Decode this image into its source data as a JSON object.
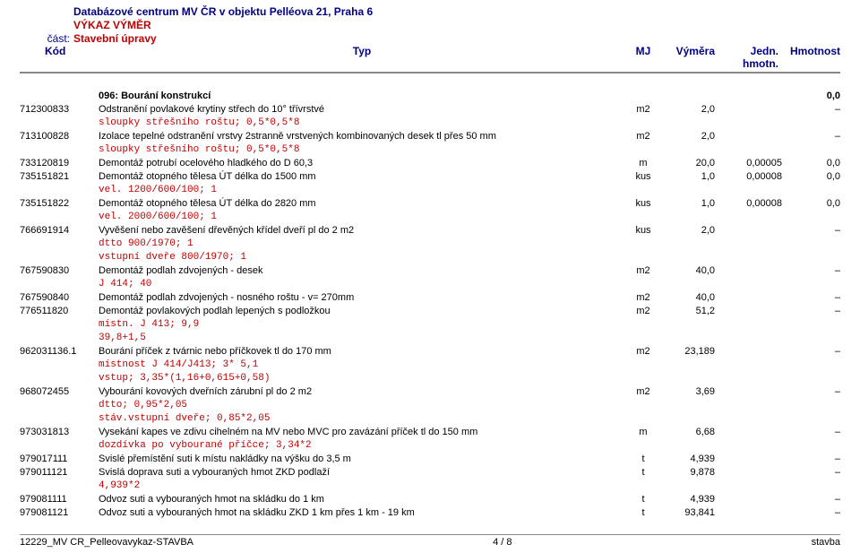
{
  "header": {
    "line1": "Databázové centrum MV ČR v objektu Pelléova 21, Praha 6",
    "line2": "VÝKAZ VÝMĚR",
    "line3_label": "část:",
    "line3_value": "Stavební úpravy"
  },
  "columns": {
    "kod": "Kód",
    "typ": "Typ",
    "mj": "MJ",
    "vymera": "Výměra",
    "jedn": "Jedn. hmotn.",
    "hmot": "Hmotnost"
  },
  "section": {
    "label": "096: Bourání konstrukcí",
    "total": "0,0"
  },
  "rows": [
    {
      "t": "item",
      "kod": "712300833",
      "typ": "Odstranění povlakové krytiny střech do 10° třívrstvé",
      "mj": "m2",
      "vym": "2,0",
      "jedn": "",
      "hm": "–"
    },
    {
      "t": "anno",
      "txt": "sloupky střešního roštu;  0,5*0,5*8"
    },
    {
      "t": "item",
      "kod": "713100828",
      "typ": "Izolace tepelné odstranění vrstvy 2stranně vrstvených kombinovaných desek tl přes 50 mm",
      "mj": "m2",
      "vym": "2,0",
      "jedn": "",
      "hm": "–"
    },
    {
      "t": "anno",
      "txt": "sloupky střešního roštu;  0,5*0,5*8"
    },
    {
      "t": "item",
      "kod": "733120819",
      "typ": "Demontáž potrubí ocelového hladkého do D 60,3",
      "mj": "m",
      "vym": "20,0",
      "jedn": "0,00005",
      "hm": "0,0"
    },
    {
      "t": "item",
      "kod": "735151821",
      "typ": "Demontáž otopného tělesa  ÚT délka do 1500 mm",
      "mj": "kus",
      "vym": "1,0",
      "jedn": "0,00008",
      "hm": "0,0"
    },
    {
      "t": "anno",
      "txt": "vel. 1200/600/100;  1"
    },
    {
      "t": "item",
      "kod": "735151822",
      "typ": "Demontáž otopného tělesa  ÚT délka do 2820 mm",
      "mj": "kus",
      "vym": "1,0",
      "jedn": "0,00008",
      "hm": "0,0"
    },
    {
      "t": "anno",
      "txt": "vel. 2000/600/100;  1"
    },
    {
      "t": "item",
      "kod": "766691914",
      "typ": "Vyvěšení nebo zavěšení dřevěných křídel dveří pl do 2 m2",
      "mj": "kus",
      "vym": "2,0",
      "jedn": "",
      "hm": "–"
    },
    {
      "t": "anno",
      "txt": "dtto 900/1970;  1"
    },
    {
      "t": "anno",
      "txt": "vstupní dveře 800/1970;  1"
    },
    {
      "t": "item",
      "kod": "767590830",
      "typ": "Demontáž podlah zdvojených - desek",
      "mj": "m2",
      "vym": "40,0",
      "jedn": "",
      "hm": "–"
    },
    {
      "t": "anno",
      "txt": "J 414;  40"
    },
    {
      "t": "item",
      "kod": "767590840",
      "typ": "Demontáž podlah zdvojených - nosného roštu - v= 270mm",
      "mj": "m2",
      "vym": "40,0",
      "jedn": "",
      "hm": "–"
    },
    {
      "t": "item",
      "kod": "776511820",
      "typ": "Demontáž povlakových podlah lepených s podložkou",
      "mj": "m2",
      "vym": "51,2",
      "jedn": "",
      "hm": "–"
    },
    {
      "t": "anno",
      "txt": "místn. J 413;  9,9"
    },
    {
      "t": "anno",
      "txt": "39,8+1,5"
    },
    {
      "t": "item",
      "kod": "962031136.1",
      "typ": "Bourání příček z tvárnic nebo příčkovek tl do 170 mm",
      "mj": "m2",
      "vym": "23,189",
      "jedn": "",
      "hm": "–"
    },
    {
      "t": "anno",
      "txt": "místnost J 414/J413;  3* 5,1"
    },
    {
      "t": "anno",
      "txt": "vstup;  3,35*(1,16+0,615+0,58)"
    },
    {
      "t": "item",
      "kod": "968072455",
      "typ": "Vybourání kovových dveřních zárubní pl do 2 m2",
      "mj": "m2",
      "vym": "3,69",
      "jedn": "",
      "hm": "–"
    },
    {
      "t": "anno",
      "txt": "dtto;  0,95*2,05"
    },
    {
      "t": "anno",
      "txt": "stáv.vstupní dveře;  0,85*2,05"
    },
    {
      "t": "item",
      "kod": "973031813",
      "typ": "Vysekání kapes ve zdivu cihelném na MV nebo MVC pro zavázání příček tl do 150 mm",
      "mj": "m",
      "vym": "6,68",
      "jedn": "",
      "hm": "–"
    },
    {
      "t": "anno",
      "txt": "dozdívka po vybourané příčce;  3,34*2"
    },
    {
      "t": "item",
      "kod": "979017111",
      "typ": "Svislé přemístění suti k místu nakládky na výšku do 3,5 m",
      "mj": "t",
      "vym": "4,939",
      "jedn": "",
      "hm": "–"
    },
    {
      "t": "item",
      "kod": "979011121",
      "typ": "Svislá doprava suti a vybouraných hmot ZKD podlaží",
      "mj": "t",
      "vym": "9,878",
      "jedn": "",
      "hm": "–"
    },
    {
      "t": "anno",
      "txt": "4,939*2"
    },
    {
      "t": "item",
      "kod": "979081111",
      "typ": "Odvoz suti a vybouraných hmot na skládku do 1 km",
      "mj": "t",
      "vym": "4,939",
      "jedn": "",
      "hm": "–"
    },
    {
      "t": "item",
      "kod": "979081121",
      "typ": "Odvoz suti a vybouraných hmot na skládku ZKD 1 km přes 1 km - 19 km",
      "mj": "t",
      "vym": "93,841",
      "jedn": "",
      "hm": "–"
    }
  ],
  "footer": {
    "left": "12229_MV CR_Pelleovavykaz-STAVBA",
    "center": "4 / 8",
    "right": "stavba"
  }
}
